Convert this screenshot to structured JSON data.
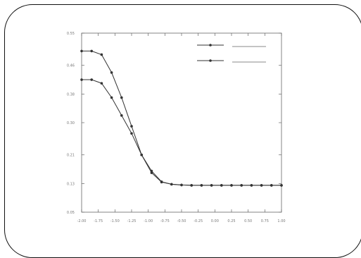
{
  "chart_data": {
    "type": "line",
    "title": "",
    "xlabel": "",
    "ylabel": "",
    "xlim": [
      -2.0,
      1.0
    ],
    "ylim": [
      0.05,
      0.55
    ],
    "x_ticks": [
      -2.0,
      -1.75,
      -1.5,
      -1.25,
      -1.0,
      -0.75,
      -0.5,
      -0.25,
      0.0,
      0.25,
      0.5,
      0.75,
      1.0
    ],
    "y_ticks": [
      0.05,
      0.13,
      0.21,
      0.3,
      0.38,
      0.46,
      0.55
    ],
    "grid": false,
    "legend": {
      "position": "top-right",
      "entries": [
        "",
        ""
      ]
    },
    "series": [
      {
        "name": "",
        "x": [
          -2.0,
          -1.85,
          -1.7,
          -1.55,
          -1.4,
          -1.25,
          -1.1,
          -0.95,
          -0.8,
          -0.65,
          -0.5,
          -0.35,
          -0.2,
          -0.05,
          0.1,
          0.25,
          0.4,
          0.55,
          0.7,
          0.85,
          1.0
        ],
        "y": [
          0.5,
          0.5,
          0.49,
          0.44,
          0.37,
          0.29,
          0.21,
          0.16,
          0.134,
          0.128,
          0.126,
          0.125,
          0.125,
          0.125,
          0.125,
          0.125,
          0.125,
          0.125,
          0.125,
          0.125,
          0.125
        ]
      },
      {
        "name": "",
        "x": [
          -2.0,
          -1.85,
          -1.7,
          -1.55,
          -1.4,
          -1.25,
          -1.1,
          -0.95,
          -0.8,
          -0.65,
          -0.5,
          -0.35,
          -0.2,
          -0.05,
          0.1,
          0.25,
          0.4,
          0.55,
          0.7,
          0.85,
          1.0
        ],
        "y": [
          0.42,
          0.42,
          0.41,
          0.37,
          0.32,
          0.27,
          0.21,
          0.165,
          0.135,
          0.128,
          0.126,
          0.125,
          0.125,
          0.125,
          0.125,
          0.125,
          0.125,
          0.125,
          0.125,
          0.125,
          0.125
        ]
      }
    ]
  },
  "colors": {
    "series": "#333333",
    "frame": "#111111",
    "axis": "#666666",
    "text": "#777777"
  }
}
